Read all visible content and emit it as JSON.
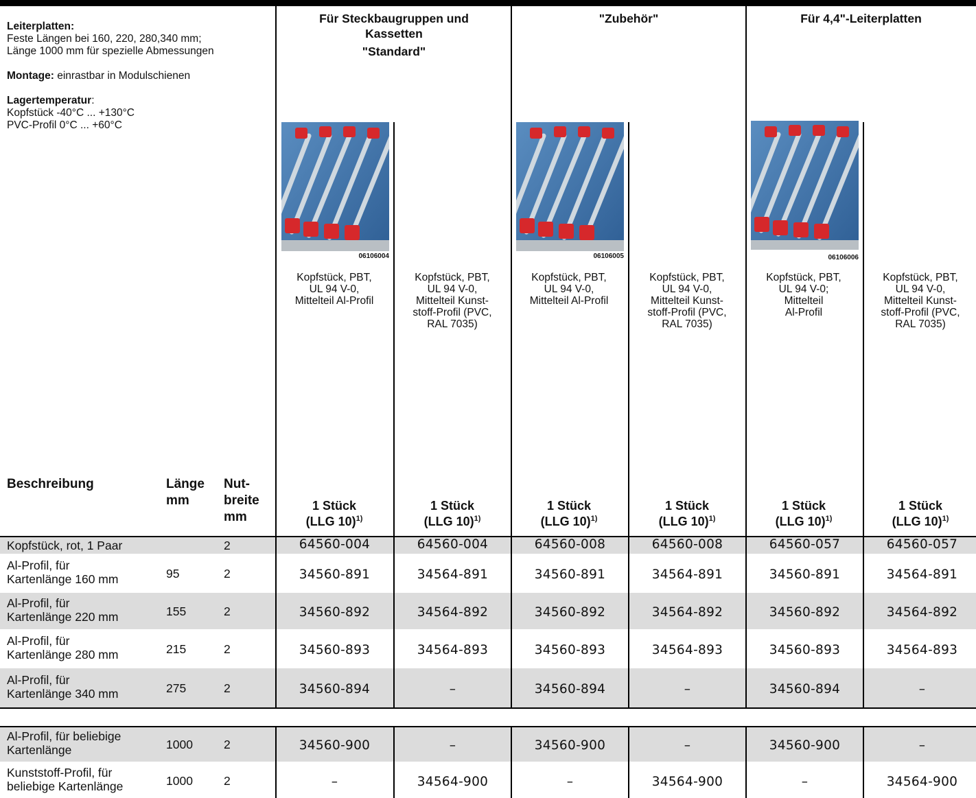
{
  "info": {
    "board_title": "Leiterplatten:",
    "board_text1": "Feste Längen bei 160, 220, 280,340 mm;",
    "board_text2": "Länge 1000 mm für spezielle Abmessungen",
    "mount_label": "Montage:",
    "mount_text": " einrastbar in Modulschienen",
    "temp_label": "Lagertemperatur",
    "temp_colon": ":",
    "temp_line1": "Kopfstück -40°C ... +130°C",
    "temp_line2": "PVC-Profil 0°C ... +60°C"
  },
  "groups": [
    {
      "line1": "Für Steckbaugruppen und",
      "line2": "Kassetten",
      "line3": "\"Standard\""
    },
    {
      "line1": "\"Zubehör\""
    },
    {
      "line1": "Für 4,4\"-Leiterplatten"
    }
  ],
  "photos": [
    {
      "id": "06106004",
      "icon": "circuit-rail-photo"
    },
    {
      "id": "06106005",
      "icon": "circuit-rail-photo"
    },
    {
      "id": "06106006",
      "icon": "circuit-rail-photo"
    }
  ],
  "descriptions": [
    [
      "Kopfstück, PBT,",
      "UL 94 V-0,",
      "Mittelteil Al-Profil"
    ],
    [
      "Kopfstück, PBT,",
      "UL 94 V-0,",
      "Mittelteil  Kunst-",
      "stoff-Profil (PVC,",
      "RAL 7035)"
    ],
    [
      "Kopfstück, PBT,",
      "UL 94 V-0,",
      "Mittelteil Al-Profil"
    ],
    [
      "Kopfstück, PBT,",
      "UL 94 V-0,",
      "Mittelteil  Kunst-",
      "stoff-Profil (PVC,",
      "RAL 7035)"
    ],
    [
      "Kopfstück, PBT,",
      "UL 94 V-0;",
      "Mittelteil",
      "Al-Profil"
    ],
    [
      "Kopfstück, PBT,",
      "UL 94 V-0,",
      "Mittelteil  Kunst-",
      "stoff-Profil (PVC,",
      "RAL 7035)"
    ]
  ],
  "headers": {
    "beschreibung": "Beschreibung",
    "laenge": "Länge",
    "laenge_unit": "mm",
    "nut1": "Nut-",
    "nut2": "breite",
    "nut_unit": "mm",
    "qty1": "1 Stück",
    "qty2": "(LLG 10)",
    "qty_sup": "1)"
  },
  "rows": [
    {
      "desc": [
        "Kopfstück, rot, 1 Paar"
      ],
      "len": "",
      "nut": "2",
      "cells": [
        "64560-004",
        "64560-004",
        "64560-008",
        "64560-008",
        "64560-057",
        "64560-057"
      ],
      "shade": true
    },
    {
      "desc": [
        "Al-Profil, für",
        "Kartenlänge 160 mm"
      ],
      "len": "95",
      "nut": "2",
      "cells": [
        "34560-891",
        "34564-891",
        "34560-891",
        "34564-891",
        "34560-891",
        "34564-891"
      ],
      "shade": false
    },
    {
      "desc": [
        "Al-Profil, für",
        "Kartenlänge 220 mm"
      ],
      "len": "155",
      "nut": "2",
      "cells": [
        "34560-892",
        "34564-892",
        "34560-892",
        "34564-892",
        "34560-892",
        "34564-892"
      ],
      "shade": true
    },
    {
      "desc": [
        "Al-Profil, für",
        "Kartenlänge 280 mm"
      ],
      "len": "215",
      "nut": "2",
      "cells": [
        "34560-893",
        "34564-893",
        "34560-893",
        "34564-893",
        "34560-893",
        "34564-893"
      ],
      "shade": false
    },
    {
      "desc": [
        "Al-Profil, für",
        "Kartenlänge 340 mm"
      ],
      "len": "275",
      "nut": "2",
      "cells": [
        "34560-894",
        "–",
        "34560-894",
        "–",
        "34560-894",
        "–"
      ],
      "shade": true
    },
    {
      "desc": [
        "Al-Profil, für beliebige",
        "Kartenlänge"
      ],
      "len": "1000",
      "nut": "2",
      "cells": [
        "34560-900",
        "–",
        "34560-900",
        "–",
        "34560-900",
        "–"
      ],
      "shade": true
    },
    {
      "desc": [
        "Kunststoff-Profil, für",
        "beliebige Kartenlänge"
      ],
      "len": "1000",
      "nut": "2",
      "cells": [
        "–",
        "34564-900",
        "–",
        "34564-900",
        "–",
        "34564-900"
      ],
      "shade": false
    }
  ],
  "colors": {
    "row_shade": "#dcdcdc",
    "rule": "#000000",
    "accent_red": "#d6282b"
  }
}
